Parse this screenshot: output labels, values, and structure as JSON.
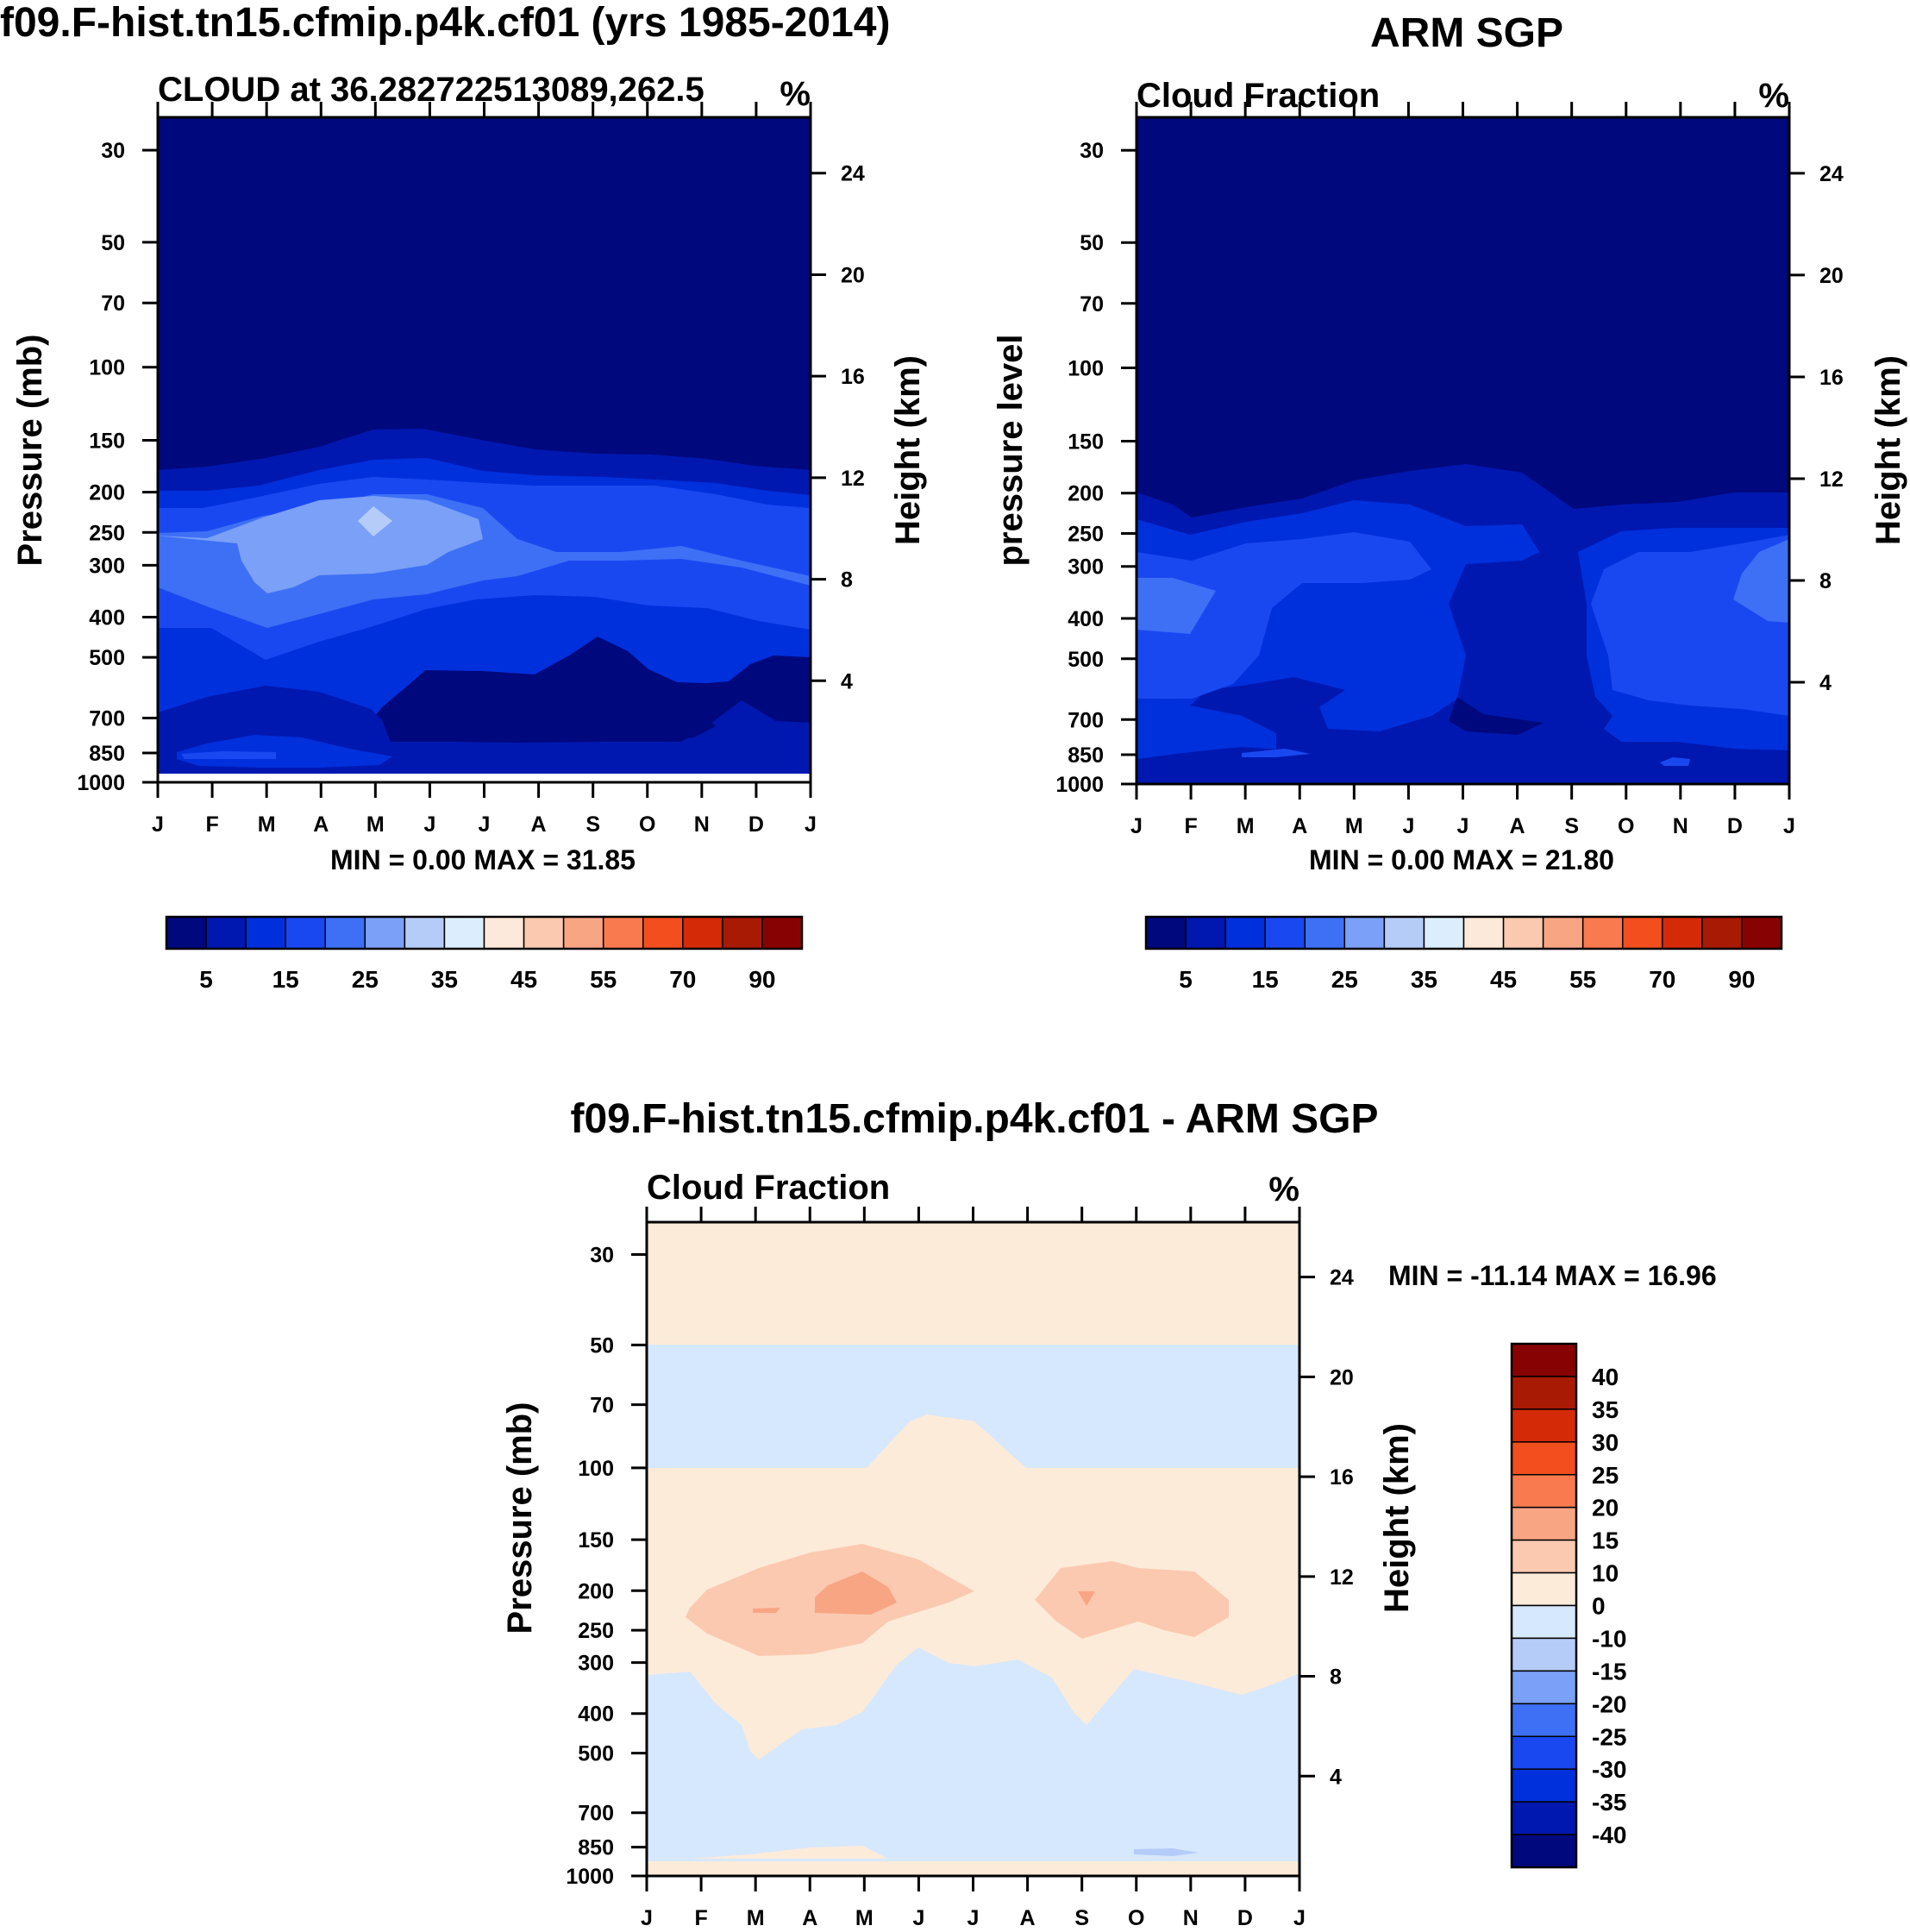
{
  "chart_data": [
    {
      "type": "contour",
      "title": "f09.F-hist.tn15.cfmip.p4k.cf01 (yrs 1985-2014)",
      "subtitle_left": "CLOUD at 36.282722513089,262.5",
      "units": "%",
      "ylabel_left": "Pressure (mb)",
      "ylabel_right": "Height (km)",
      "x_ticks": [
        "J",
        "F",
        "M",
        "A",
        "M",
        "J",
        "J",
        "A",
        "S",
        "O",
        "N",
        "D",
        "J"
      ],
      "pressure_ticks": [
        "30",
        "50",
        "70",
        "100",
        "150",
        "200",
        "250",
        "300",
        "400",
        "500",
        "700",
        "850",
        "1000"
      ],
      "height_ticks": [
        "24",
        "20",
        "16",
        "12",
        "8",
        "4"
      ],
      "ylim": [
        1000,
        25
      ],
      "minmax_text": "MIN =   0.00 MAX =  31.85",
      "min": 0.0,
      "max": 31.85,
      "colorbar_labels": [
        "5",
        "15",
        "25",
        "35",
        "45",
        "55",
        "70",
        "90"
      ],
      "levels": [
        5,
        10,
        15,
        20,
        25,
        30,
        35,
        40,
        45,
        50,
        55,
        60,
        70,
        80,
        90
      ]
    },
    {
      "type": "contour",
      "title": "ARM SGP",
      "subtitle_left": "Cloud Fraction",
      "units": "%",
      "ylabel_left": "pressure level",
      "ylabel_right": "Height (km)",
      "x_ticks": [
        "J",
        "F",
        "M",
        "A",
        "M",
        "J",
        "J",
        "A",
        "S",
        "O",
        "N",
        "D",
        "J"
      ],
      "pressure_ticks": [
        "30",
        "50",
        "70",
        "100",
        "150",
        "200",
        "250",
        "300",
        "400",
        "500",
        "700",
        "850",
        "1000"
      ],
      "height_ticks": [
        "24",
        "20",
        "16",
        "12",
        "8",
        "4"
      ],
      "ylim": [
        1000,
        25
      ],
      "minmax_text": "MIN =   0.00 MAX =  21.80",
      "min": 0.0,
      "max": 21.8,
      "colorbar_labels": [
        "5",
        "15",
        "25",
        "35",
        "45",
        "55",
        "70",
        "90"
      ],
      "levels": [
        5,
        10,
        15,
        20,
        25,
        30,
        35,
        40,
        45,
        50,
        55,
        60,
        70,
        80,
        90
      ]
    },
    {
      "type": "contour",
      "title": "f09.F-hist.tn15.cfmip.p4k.cf01 - ARM SGP",
      "subtitle_left": "Cloud Fraction",
      "units": "%",
      "ylabel_left": "Pressure (mb)",
      "ylabel_right": "Height (km)",
      "x_ticks": [
        "J",
        "F",
        "M",
        "A",
        "M",
        "J",
        "J",
        "A",
        "S",
        "O",
        "N",
        "D",
        "J"
      ],
      "pressure_ticks": [
        "30",
        "50",
        "70",
        "100",
        "150",
        "200",
        "250",
        "300",
        "400",
        "500",
        "700",
        "850",
        "1000"
      ],
      "height_ticks": [
        "24",
        "20",
        "16",
        "12",
        "8",
        "4"
      ],
      "ylim": [
        1000,
        25
      ],
      "minmax_text": "MIN = -11.14 MAX =  16.96",
      "min": -11.14,
      "max": 16.96,
      "colorbar_labels": [
        "40",
        "35",
        "30",
        "25",
        "20",
        "15",
        "10",
        "0",
        "-10",
        "-15",
        "-20",
        "-25",
        "-30",
        "-35",
        "-40"
      ],
      "levels": [
        -40,
        -35,
        -30,
        -25,
        -20,
        -15,
        -10,
        0,
        10,
        15,
        20,
        25,
        30,
        35,
        40
      ]
    }
  ],
  "palettes": {
    "cloud": [
      "#00087d",
      "#0018b0",
      "#0030dc",
      "#1a48f0",
      "#3d70f5",
      "#7aa0f7",
      "#b5ccf9",
      "#dceefd",
      "#fde9d9",
      "#fbc9b0",
      "#f8a584",
      "#f97a4f",
      "#f24e1e",
      "#d52a08",
      "#a81a04",
      "#870303"
    ],
    "diff": [
      "#00087d",
      "#0018b0",
      "#0030dc",
      "#1a48f0",
      "#3d70f5",
      "#7aa0f7",
      "#b5ccf9",
      "#d6e8fd",
      "#fdebd9",
      "#fbc9b0",
      "#f8a584",
      "#f97a4f",
      "#f24e1e",
      "#d52a08",
      "#a81a04",
      "#870303"
    ]
  }
}
